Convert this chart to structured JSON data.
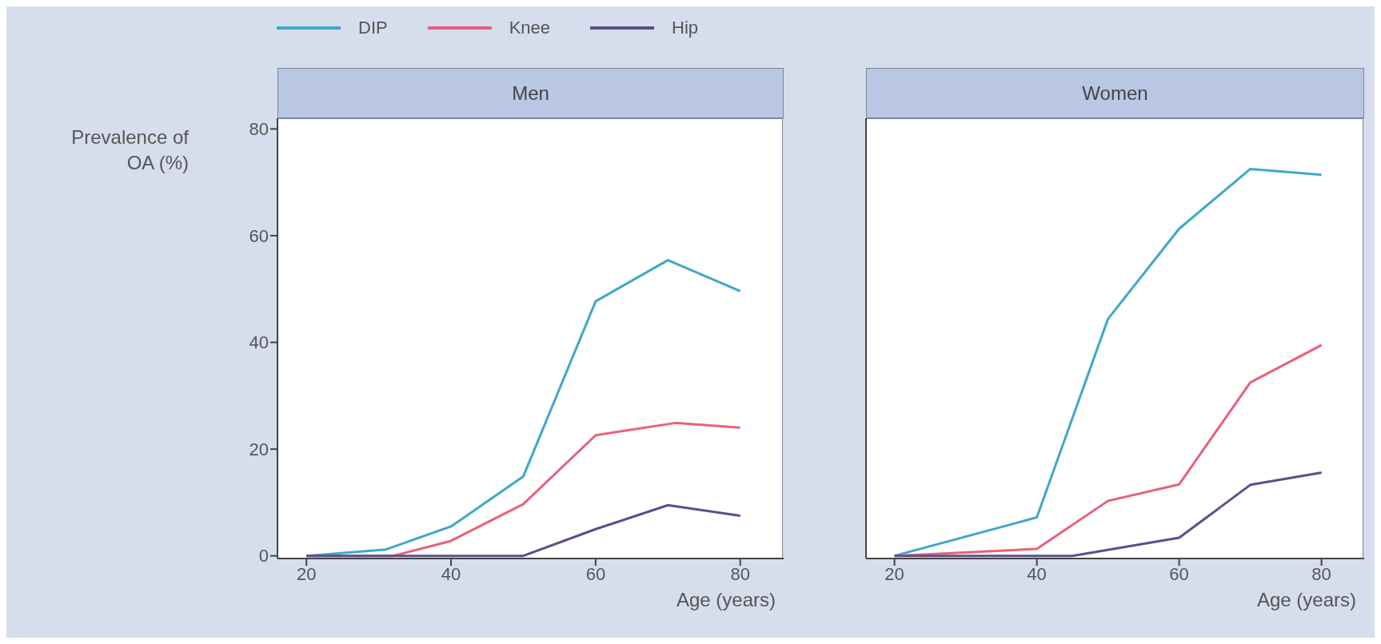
{
  "chart_data": [
    {
      "type": "line",
      "title": "Men",
      "xlabel": "Age (years)",
      "ylabel": "Prevalence of OA (%)",
      "xlim": [
        16,
        86
      ],
      "xticks": [
        20,
        40,
        60,
        80
      ],
      "ylim": [
        -0.5,
        82
      ],
      "yticks": [
        0,
        20,
        40,
        60,
        80
      ],
      "legend": "top",
      "marker": "none",
      "line_style": "solid",
      "series": [
        {
          "name": "DIP",
          "color": "#3ea8c8",
          "x": [
            20,
            31,
            40,
            50,
            60,
            70,
            80
          ],
          "values": [
            0,
            1.2,
            5.5,
            14.9,
            47.7,
            55.4,
            49.6
          ]
        },
        {
          "name": "Knee",
          "color": "#e8607a",
          "x": [
            20,
            32,
            40,
            50,
            60,
            71,
            80
          ],
          "values": [
            0,
            0,
            2.8,
            9.7,
            22.6,
            24.9,
            24
          ]
        },
        {
          "name": "Hip",
          "color": "#5a4f8a",
          "x": [
            20,
            50,
            60,
            70,
            80
          ],
          "values": [
            0,
            0,
            5,
            9.5,
            7.5
          ]
        }
      ]
    },
    {
      "type": "line",
      "title": "Women",
      "xlabel": "Age (years)",
      "xlim": [
        16,
        86
      ],
      "xticks": [
        20,
        40,
        60,
        80
      ],
      "ylim": [
        -0.5,
        82
      ],
      "yticks": [
        0,
        20,
        40,
        60,
        80
      ],
      "tick_labels": "x",
      "marker": "none",
      "line_style": "solid",
      "series": [
        {
          "color": "#3ea8c8",
          "x": [
            20,
            40,
            50,
            60,
            70,
            80
          ],
          "values": [
            0,
            7.2,
            44.4,
            61.3,
            72.5,
            71.4
          ]
        },
        {
          "color": "#e8607a",
          "x": [
            20,
            40,
            50,
            60,
            70,
            80
          ],
          "values": [
            0,
            1.3,
            10.3,
            13.4,
            32.5,
            39.5
          ]
        },
        {
          "color": "#5a4f8a",
          "x": [
            20,
            45,
            60,
            70,
            80
          ],
          "values": [
            0,
            0,
            3.4,
            13.3,
            15.6
          ]
        }
      ]
    }
  ]
}
